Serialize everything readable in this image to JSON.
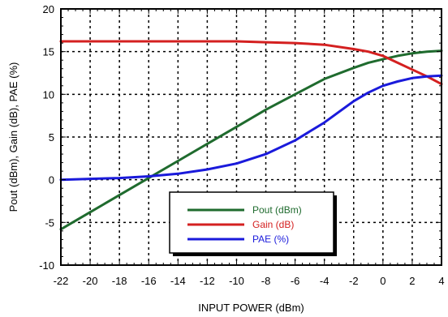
{
  "chart_data": {
    "type": "line",
    "xlabel": "INPUT POWER (dBm)",
    "ylabel": "Pout (dBm), Gain (dB), PAE (%)",
    "xlim": [
      -22,
      4
    ],
    "ylim": [
      -10,
      20
    ],
    "xticks": [
      -22,
      -20,
      -18,
      -16,
      -14,
      -12,
      -10,
      -8,
      -6,
      -4,
      -2,
      0,
      2,
      4
    ],
    "yticks": [
      -10,
      -5,
      0,
      5,
      10,
      15,
      20
    ],
    "xtick_labels": [
      "-22",
      "-20",
      "-18",
      "-16",
      "-14",
      "-12",
      "-10",
      "-8",
      "-6",
      "-4",
      "-2",
      "0",
      "2",
      "4"
    ],
    "ytick_labels": [
      "-10",
      "-5",
      "0",
      "5",
      "10",
      "15",
      "20"
    ],
    "grid": true,
    "legend_position": "bottom-center",
    "series": [
      {
        "name": "Pout (dBm)",
        "color": "#1f6b2e",
        "x": [
          -22,
          -20,
          -18,
          -16,
          -14,
          -12,
          -10,
          -8,
          -6,
          -4,
          -2,
          -1,
          0,
          1,
          2,
          3,
          4
        ],
        "y": [
          -5.8,
          -3.8,
          -1.8,
          0.2,
          2.2,
          4.2,
          6.2,
          8.2,
          10.0,
          11.8,
          13.1,
          13.7,
          14.1,
          14.5,
          14.8,
          15.0,
          15.1
        ]
      },
      {
        "name": "Gain (dB)",
        "color": "#d42020",
        "x": [
          -22,
          -20,
          -18,
          -16,
          -14,
          -12,
          -10,
          -8,
          -6,
          -4,
          -2,
          -1,
          0,
          1,
          2,
          3,
          4
        ],
        "y": [
          16.2,
          16.2,
          16.2,
          16.2,
          16.2,
          16.2,
          16.2,
          16.1,
          16.0,
          15.8,
          15.3,
          15.0,
          14.5,
          13.7,
          12.9,
          12.1,
          11.2
        ]
      },
      {
        "name": "PAE (%)",
        "color": "#1a1adb",
        "x": [
          -22,
          -20,
          -18,
          -16,
          -14,
          -12,
          -10,
          -8,
          -6,
          -4,
          -2,
          -1,
          0,
          1,
          2,
          3,
          4
        ],
        "y": [
          0.0,
          0.1,
          0.2,
          0.4,
          0.7,
          1.2,
          1.9,
          3.0,
          4.6,
          6.7,
          9.2,
          10.2,
          11.0,
          11.5,
          11.9,
          12.1,
          12.2
        ]
      }
    ]
  }
}
